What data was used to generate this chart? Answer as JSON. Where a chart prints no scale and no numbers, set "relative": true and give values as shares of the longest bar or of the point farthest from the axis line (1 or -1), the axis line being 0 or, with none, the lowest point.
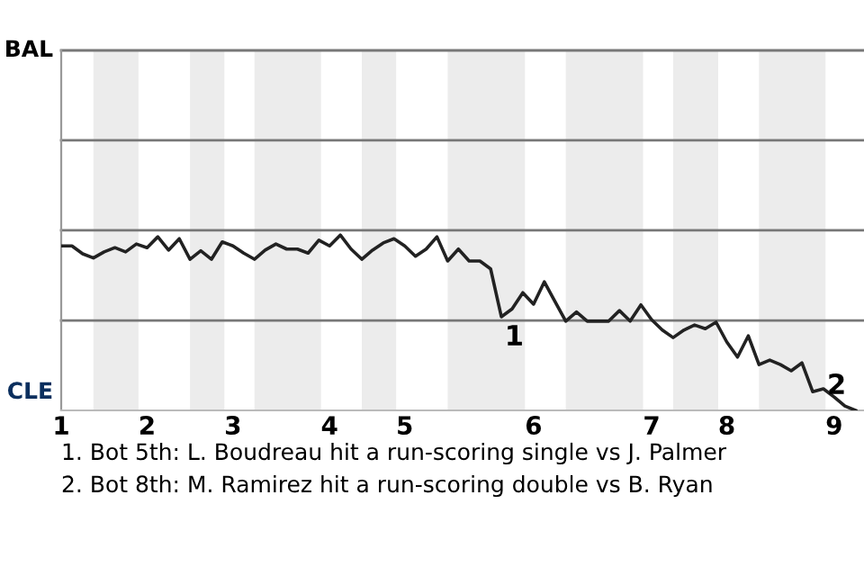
{
  "chart_data": {
    "type": "line",
    "relative": true,
    "categories": [
      "1",
      null,
      null,
      null,
      null,
      null,
      null,
      null,
      "2",
      null,
      null,
      null,
      null,
      null,
      null,
      null,
      "3",
      null,
      null,
      null,
      null,
      null,
      null,
      null,
      null,
      "4",
      null,
      null,
      null,
      null,
      null,
      null,
      "5",
      null,
      null,
      null,
      null,
      null,
      null,
      null,
      null,
      null,
      null,
      null,
      "6",
      null,
      null,
      null,
      null,
      null,
      null,
      null,
      null,
      null,
      null,
      "7",
      null,
      null,
      null,
      null,
      null,
      null,
      "8",
      null,
      null,
      null,
      null,
      null,
      null,
      null,
      null,
      null,
      "9",
      null,
      null
    ],
    "series": [
      {
        "color": "#222222",
        "values": [
          0.938,
          0.938,
          0.893,
          0.869,
          0.904,
          0.928,
          0.904,
          0.949,
          0.928,
          0.99,
          0.914,
          0.979,
          0.862,
          0.91,
          0.862,
          0.961,
          0.938,
          0.897,
          0.862,
          0.914,
          0.949,
          0.92,
          0.92,
          0.897,
          0.971,
          0.938,
          1,
          0.92,
          0.862,
          0.914,
          0.955,
          0.979,
          0.938,
          0.879,
          0.92,
          0.99,
          0.852,
          0.92,
          0.852,
          0.852,
          0.807,
          0.534,
          0.579,
          0.671,
          0.606,
          0.733,
          0.62,
          0.509,
          0.561,
          0.509,
          0.509,
          0.509,
          0.569,
          0.509,
          0.602,
          0.517,
          0.458,
          0.415,
          0.458,
          0.487,
          0.466,
          0.503,
          0.39,
          0.304,
          0.425,
          0.261,
          0.287,
          0.261,
          0.226,
          0.271,
          0.107,
          0.123,
          0.076,
          0.025,
          0
        ],
        "name": null
      }
    ],
    "ref_lines": [
      {
        "axis": "y",
        "value": 0.513,
        "label": null,
        "color": "#777777"
      },
      {
        "axis": "y",
        "value": 1.027,
        "label": null,
        "color": "#777777"
      },
      {
        "axis": "y",
        "value": 1.54,
        "label": null,
        "color": "#777777"
      },
      {
        "axis": "y",
        "value": 2.053,
        "label": null,
        "color": "#777777"
      }
    ],
    "annotations": [
      "1",
      "2",
      "BAL",
      "CLE",
      "1. Bot 5th: L. Boudreau hit a run-scoring single vs J. Palmer",
      "2. Bot 8th: M. Ramirez hit a run-scoring double vs B. Ryan"
    ],
    "marker": "none",
    "line_style": "solid"
  }
}
